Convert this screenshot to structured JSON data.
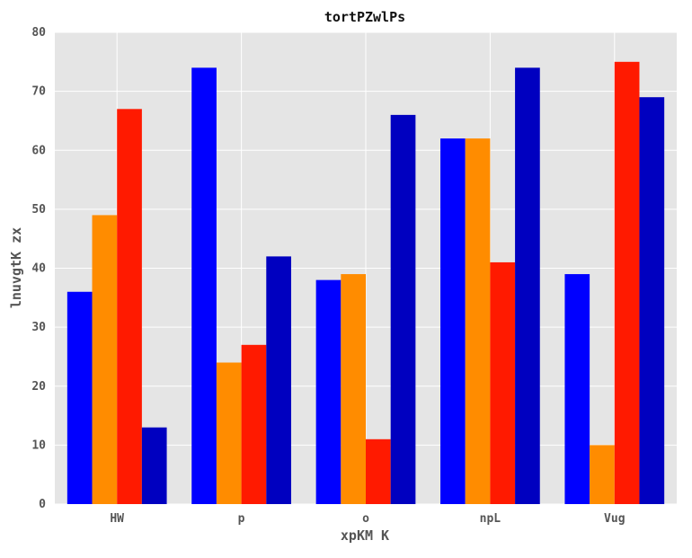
{
  "chart_data": {
    "type": "bar",
    "title": "tortPZwlPs",
    "xlabel": "xpKM K",
    "ylabel": "lnuvgtK zx",
    "categories": [
      "HW",
      "p",
      "o",
      "npL",
      "Vug"
    ],
    "series": [
      {
        "color": "#0000ff",
        "values": [
          36,
          74,
          38,
          62,
          39
        ]
      },
      {
        "color": "#ff8c00",
        "values": [
          49,
          24,
          39,
          62,
          10
        ]
      },
      {
        "color": "#ff1a00",
        "values": [
          67,
          27,
          11,
          41,
          75
        ]
      },
      {
        "color": "#0000c0",
        "values": [
          13,
          42,
          66,
          74,
          69
        ]
      }
    ],
    "ylim": [
      0,
      80
    ],
    "yticks": [
      0,
      10,
      20,
      30,
      40,
      50,
      60,
      70,
      80
    ],
    "xlim": [
      -0.1,
      4.9
    ],
    "grid": true,
    "background": "#e5e5e5",
    "grid_color": "#ffffff"
  }
}
